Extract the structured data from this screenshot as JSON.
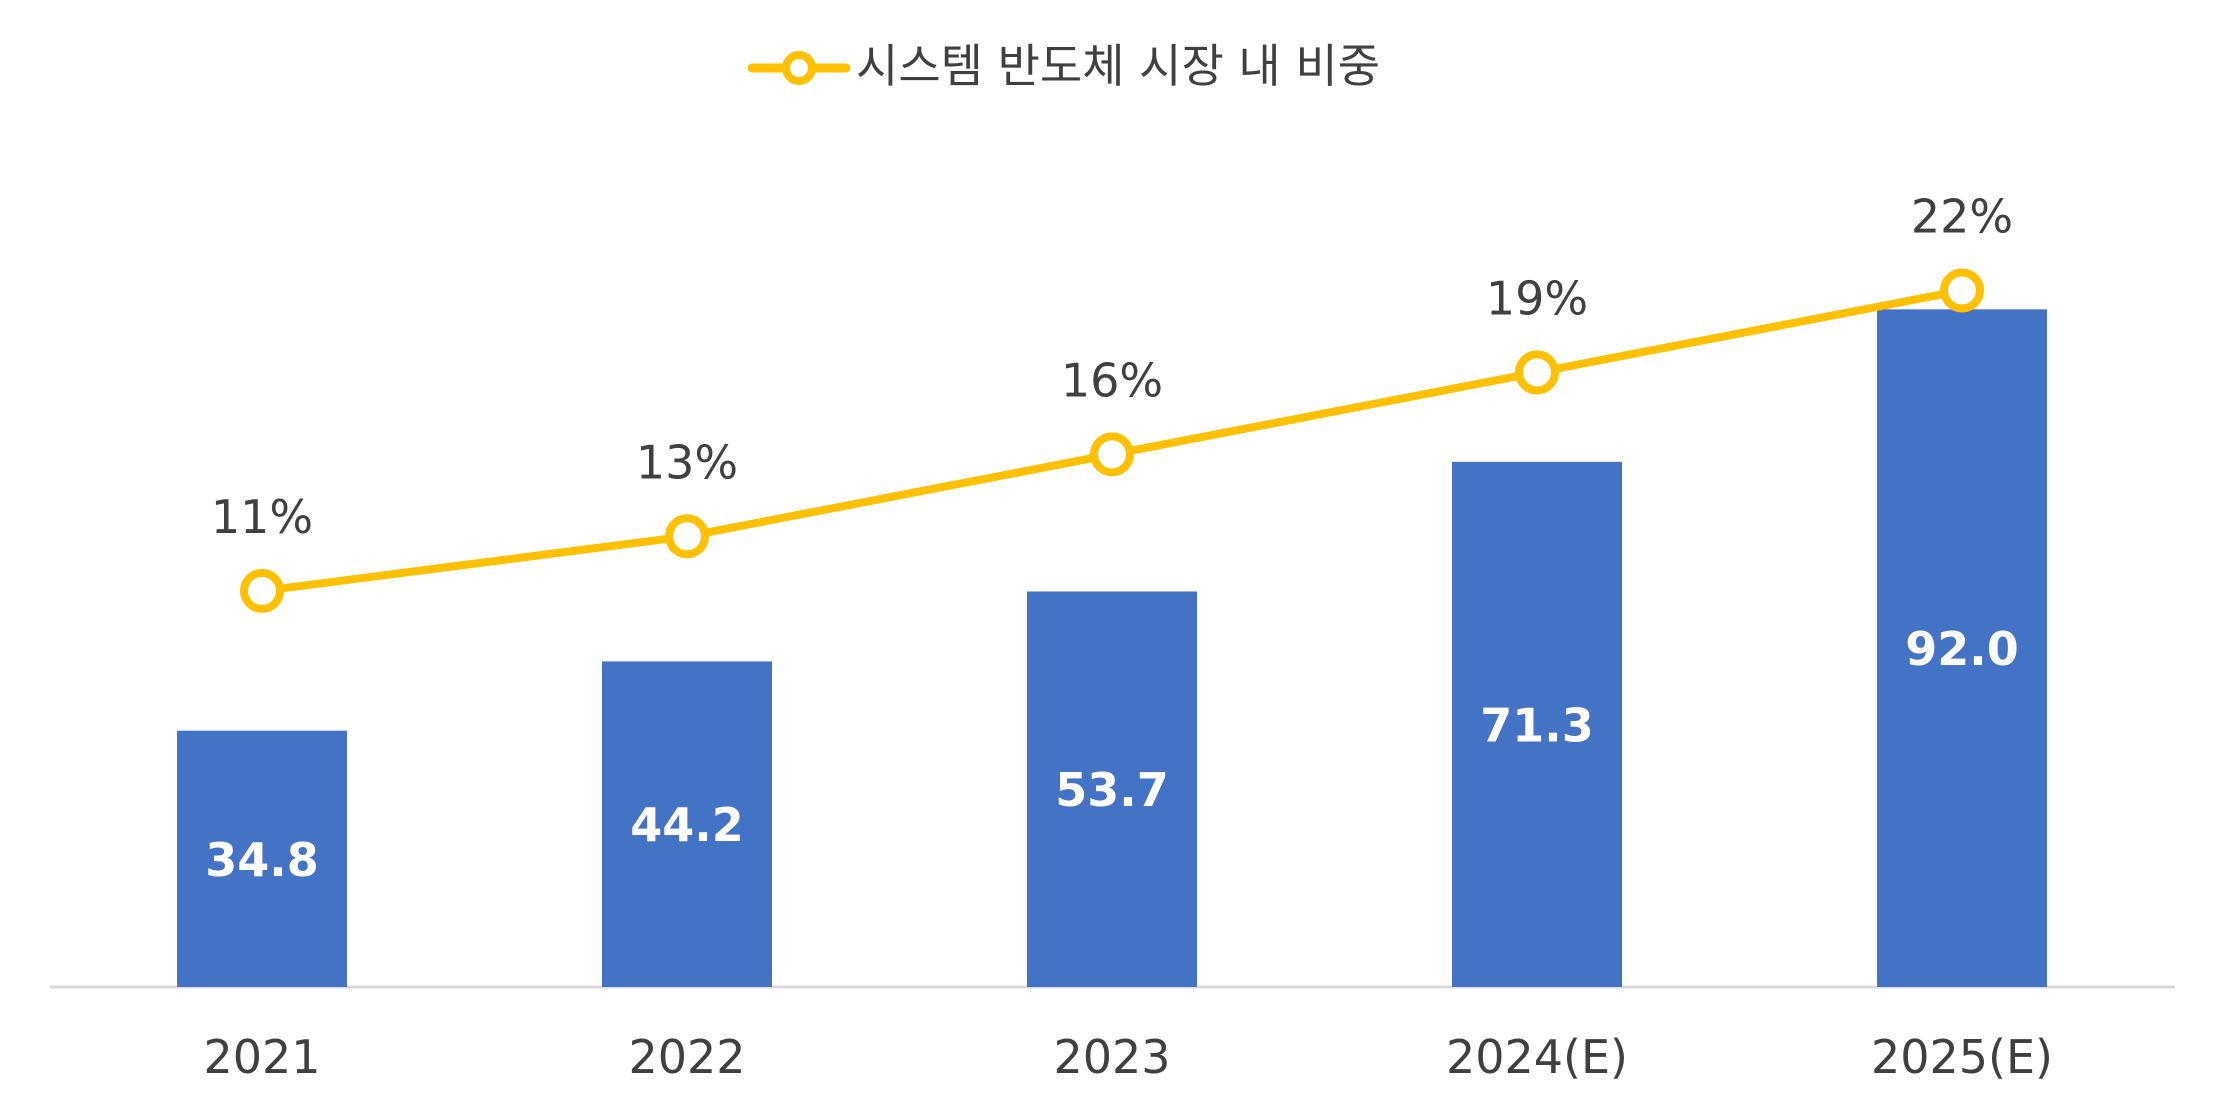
{
  "chart_data": {
    "type": "bar",
    "categories": [
      "2021",
      "2022",
      "2023",
      "2024(E)",
      "2025(E)"
    ],
    "bar_values": [
      34.8,
      44.2,
      53.7,
      71.3,
      92.0
    ],
    "bar_labels": [
      "34.8",
      "44.2",
      "53.7",
      "71.3",
      "92.0"
    ],
    "line_series": {
      "name": "시스템 반도체 시장 내 비중",
      "values": [
        11,
        13,
        16,
        19,
        22
      ],
      "labels": [
        "11%",
        "13%",
        "16%",
        "19%",
        "22%"
      ]
    },
    "bar_ylim": [
      0,
      134
    ],
    "line_ylim": [
      -3.5,
      33
    ],
    "legend_position": "top-center",
    "grid": false,
    "colors": {
      "bar": "#4472C4",
      "line": "#FFC000",
      "marker_fill": "#FFFFFF",
      "bar_label": "#FFFFFF",
      "text": "#404040",
      "axis": "#D9D9D9"
    }
  }
}
